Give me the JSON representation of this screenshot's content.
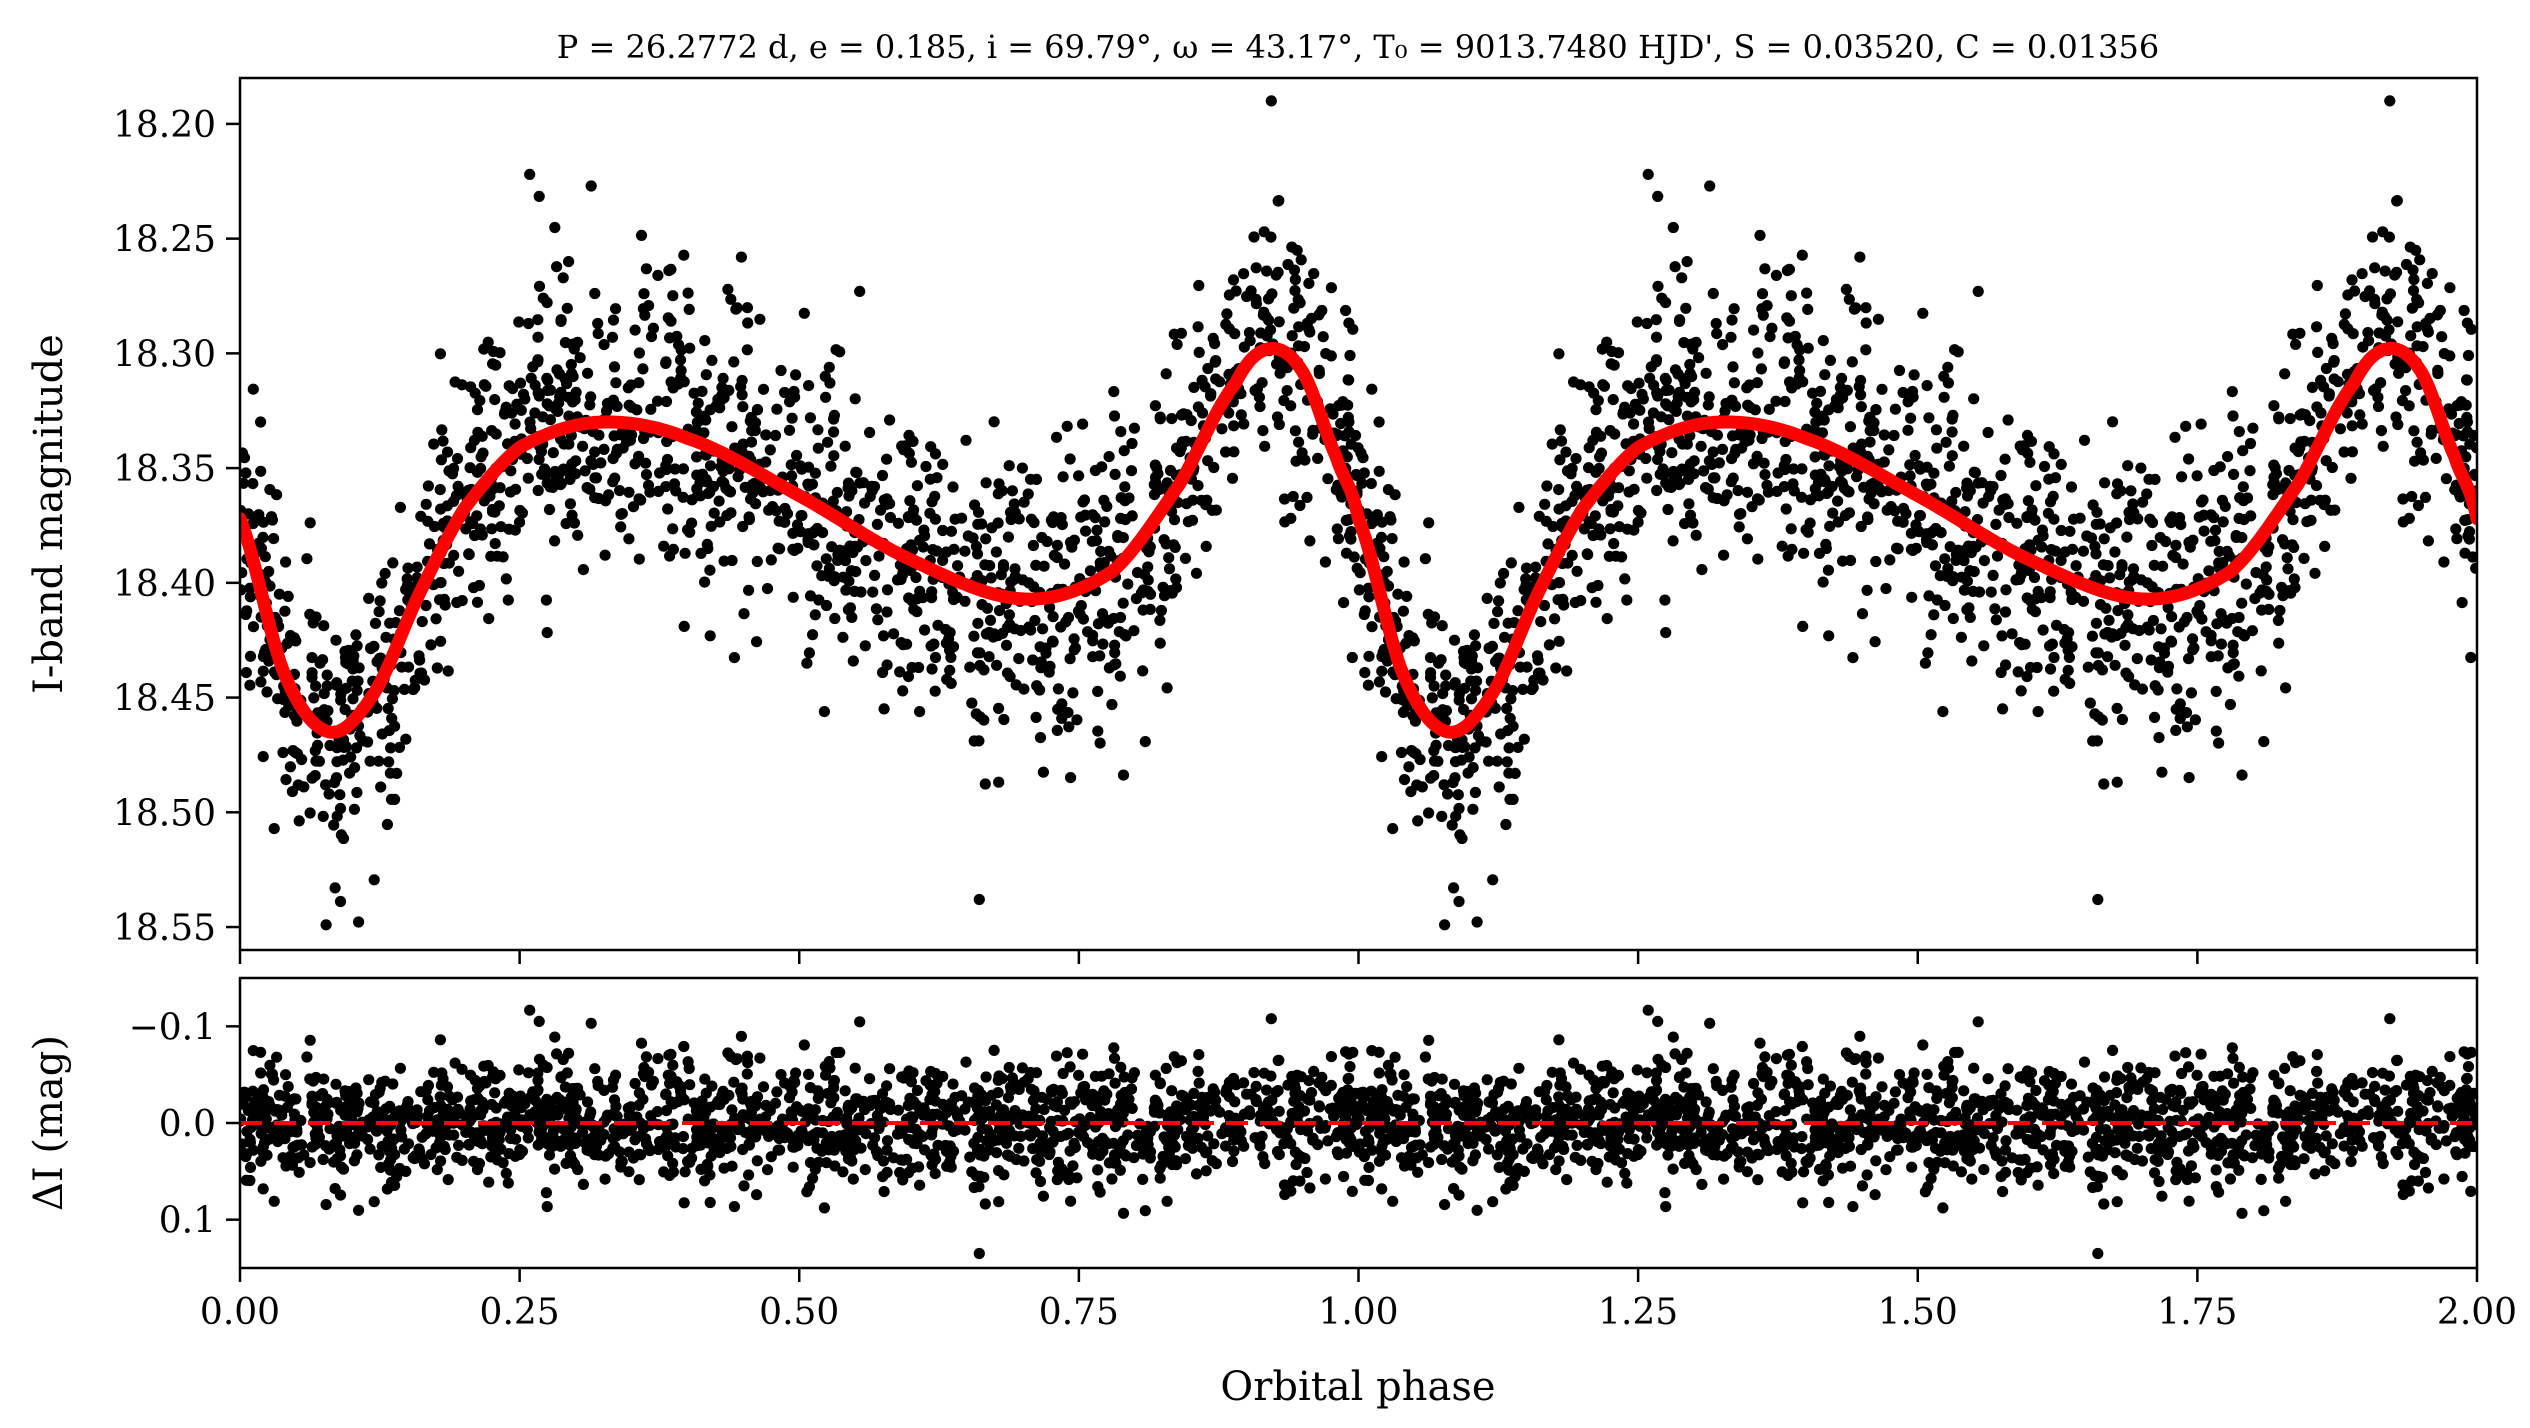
{
  "chart_data": [
    {
      "type": "scatter",
      "panel": "light-curve",
      "title": "P = 26.2772 d, e = 0.185, i = 69.79°, ω = 43.17°, T₀ = 9013.7480 HJD', S = 0.03520, C = 0.01356",
      "xlabel": "",
      "ylabel": "I-band magnitude",
      "xlim": [
        0.0,
        2.0
      ],
      "ylim": [
        18.56,
        18.18
      ],
      "y_inverted": true,
      "yticks": [
        18.2,
        18.25,
        18.3,
        18.35,
        18.4,
        18.45,
        18.5,
        18.55
      ],
      "ytick_labels": [
        "18.20",
        "18.25",
        "18.30",
        "18.35",
        "18.40",
        "18.45",
        "18.50",
        "18.55"
      ],
      "model_color": "#ff0000",
      "point_color": "#000000",
      "model_curve": {
        "x": [
          0.0,
          0.04,
          0.08,
          0.12,
          0.16,
          0.2,
          0.25,
          0.32,
          0.4,
          0.5,
          0.6,
          0.7,
          0.78,
          0.84,
          0.89,
          0.92,
          0.95,
          0.98,
          1.0
        ],
        "y": [
          18.372,
          18.44,
          18.465,
          18.448,
          18.405,
          18.368,
          18.341,
          18.33,
          18.337,
          18.362,
          18.39,
          18.407,
          18.395,
          18.357,
          18.313,
          18.298,
          18.308,
          18.345,
          18.372
        ]
      },
      "observations": {
        "n_points": 1600,
        "scatter_mag": 0.04,
        "note_outlier_points": [
          {
            "x": 0.922,
            "y": 18.19
          },
          {
            "x": 0.259,
            "y": 18.222
          },
          {
            "x": 0.661,
            "y": 18.538
          },
          {
            "x": 0.077,
            "y": 18.549
          }
        ]
      }
    },
    {
      "type": "scatter",
      "panel": "residuals",
      "title": "",
      "xlabel": "Orbital phase",
      "ylabel": "ΔI (mag)",
      "xlim": [
        0.0,
        2.0
      ],
      "ylim": [
        0.15,
        -0.15
      ],
      "y_inverted": true,
      "xticks": [
        0.0,
        0.25,
        0.5,
        0.75,
        1.0,
        1.25,
        1.5,
        1.75,
        2.0
      ],
      "xtick_labels": [
        "0.00",
        "0.25",
        "0.50",
        "0.75",
        "1.00",
        "1.25",
        "1.50",
        "1.75",
        "2.00"
      ],
      "yticks": [
        -0.1,
        0.0,
        0.1
      ],
      "ytick_labels": [
        "−0.1",
        "0.0",
        "0.1"
      ],
      "reference_line": {
        "y": 0.0,
        "style": "dashed",
        "color": "#ff0000"
      },
      "point_color": "#000000",
      "residuals": {
        "n_points": 1600,
        "scatter_mag": 0.04
      }
    }
  ]
}
